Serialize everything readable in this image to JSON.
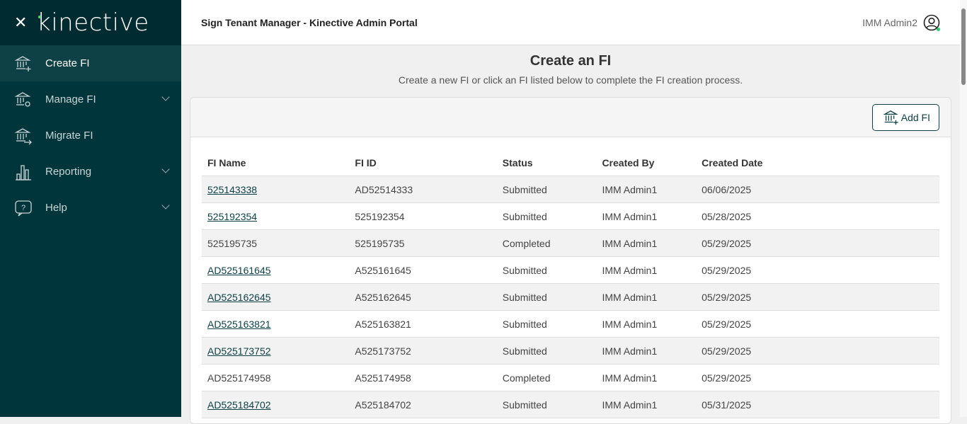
{
  "brand": {
    "logo": "kinective"
  },
  "sidebar": {
    "items": [
      {
        "label": "Create FI",
        "icon": "bank-plus-icon",
        "active": true,
        "chevron": false
      },
      {
        "label": "Manage FI",
        "icon": "bank-gear-icon",
        "active": false,
        "chevron": true
      },
      {
        "label": "Migrate FI",
        "icon": "bank-arrow-icon",
        "active": false,
        "chevron": false
      },
      {
        "label": "Reporting",
        "icon": "bar-chart-icon",
        "active": false,
        "chevron": true
      },
      {
        "label": "Help",
        "icon": "help-icon",
        "active": false,
        "chevron": true
      }
    ]
  },
  "header": {
    "title": "Sign Tenant Manager - Kinective Admin Portal",
    "user": "IMM Admin2"
  },
  "page": {
    "title": "Create an FI",
    "subtitle": "Create a new FI or click an FI listed below to complete the FI creation process.",
    "add_label": "Add FI"
  },
  "table": {
    "columns": [
      "FI Name",
      "FI ID",
      "Status",
      "Created By",
      "Created Date"
    ],
    "rows": [
      {
        "name": "525143338",
        "link": true,
        "id": "AD52514333",
        "status": "Submitted",
        "by": "IMM Admin1",
        "date": "06/06/2025"
      },
      {
        "name": "525192354",
        "link": true,
        "id": "525192354",
        "status": "Submitted",
        "by": "IMM Admin1",
        "date": "05/28/2025"
      },
      {
        "name": "525195735",
        "link": false,
        "id": "525195735",
        "status": "Completed",
        "by": "IMM Admin1",
        "date": "05/29/2025"
      },
      {
        "name": "AD525161645",
        "link": true,
        "id": "A525161645",
        "status": "Submitted",
        "by": "IMM Admin1",
        "date": "05/29/2025"
      },
      {
        "name": "AD525162645",
        "link": true,
        "id": "A525162645",
        "status": "Submitted",
        "by": "IMM Admin1",
        "date": "05/29/2025"
      },
      {
        "name": "AD525163821",
        "link": true,
        "id": "A525163821",
        "status": "Submitted",
        "by": "IMM Admin1",
        "date": "05/29/2025"
      },
      {
        "name": "AD525173752",
        "link": true,
        "id": "A525173752",
        "status": "Submitted",
        "by": "IMM Admin1",
        "date": "05/29/2025"
      },
      {
        "name": "AD525174958",
        "link": false,
        "id": "A525174958",
        "status": "Completed",
        "by": "IMM Admin1",
        "date": "05/29/2025"
      },
      {
        "name": "AD525184702",
        "link": true,
        "id": "A525184702",
        "status": "Submitted",
        "by": "IMM Admin1",
        "date": "05/31/2025"
      }
    ]
  },
  "colors": {
    "sidebar": "#00363b",
    "brand_bar": "#002b30",
    "active": "#0e4146",
    "online": "#2ecc71"
  }
}
